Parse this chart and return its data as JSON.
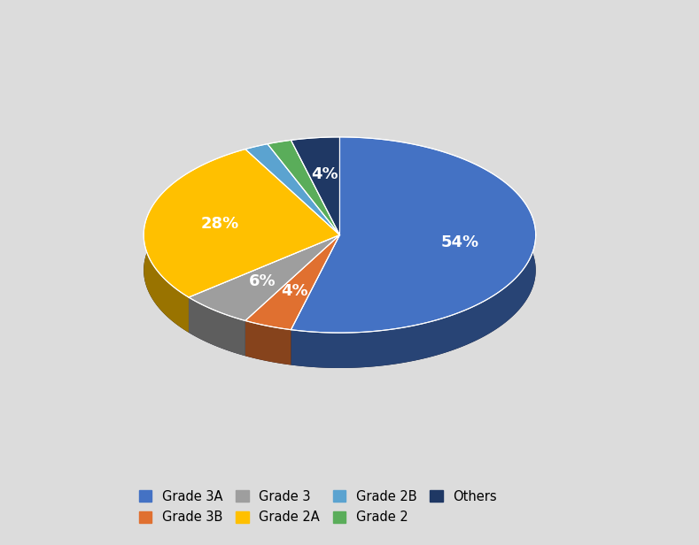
{
  "labels": [
    "Grade 3A",
    "Grade 3B",
    "Grade 3",
    "Grade 2A",
    "Grade 2B",
    "Grade 2",
    "Others"
  ],
  "values": [
    54,
    4,
    6,
    28,
    2,
    2,
    4
  ],
  "colors": [
    "#4472C4",
    "#E07030",
    "#9E9E9E",
    "#FFC000",
    "#5BA3D0",
    "#5AAD5A",
    "#1F3864"
  ],
  "background_color": "#DCDCDC",
  "text_color": "#FFFFFF",
  "font_size": 13,
  "legend_font_size": 10.5
}
